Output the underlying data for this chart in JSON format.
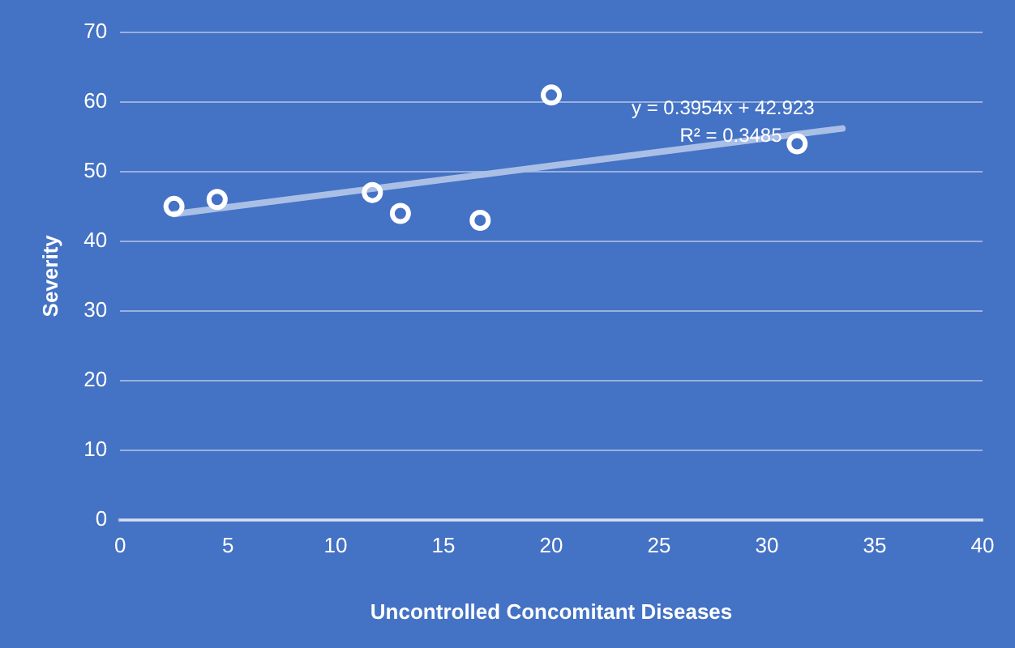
{
  "chart_data": {
    "type": "scatter",
    "xlabel": "Uncontrolled Concomitant Diseases",
    "ylabel": "Severity",
    "annotations": [
      "y = 0.3954x + 42.923",
      "R² = 0.3485"
    ],
    "series": [
      {
        "type": "scatter",
        "marker": "circle",
        "color": "#ffffff",
        "x": [
          2.5,
          4.5,
          11.7,
          13.0,
          16.7,
          20.0,
          31.4
        ],
        "values": [
          45,
          46,
          47,
          44,
          43,
          61,
          54
        ]
      },
      {
        "type": "line",
        "marker": "none",
        "color": "#a9bfe6",
        "x": [
          2.5,
          33.5
        ],
        "values": [
          43.9,
          56.2
        ]
      }
    ],
    "xlim": [
      0,
      40
    ],
    "xticks": [
      0,
      5,
      10,
      15,
      20,
      25,
      30,
      35,
      40
    ],
    "ylim": [
      0,
      70
    ],
    "yticks": [
      0,
      10,
      20,
      30,
      40,
      50,
      60,
      70
    ],
    "grid": "y",
    "legend": false
  }
}
